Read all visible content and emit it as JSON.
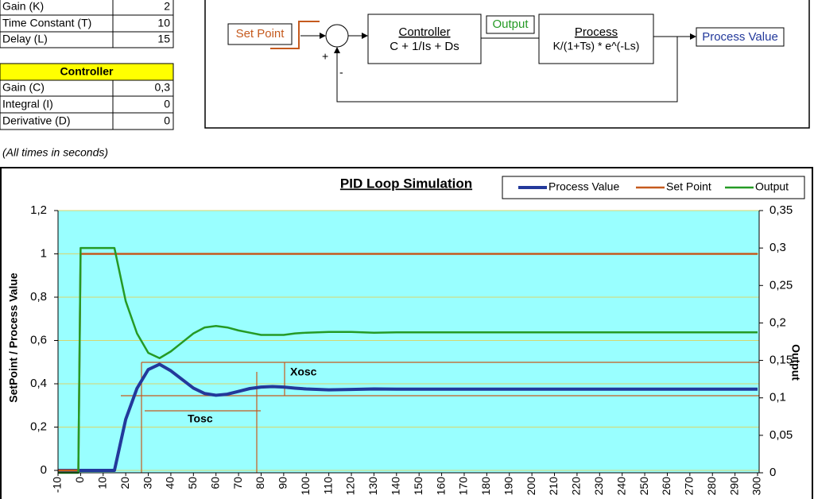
{
  "parameters_table": {
    "rows": [
      [
        "Gain (K)",
        "2"
      ],
      [
        "Time Constant (T)",
        "10"
      ],
      [
        "Delay (L)",
        "15"
      ]
    ]
  },
  "controller_table": {
    "title": "Controller",
    "rows": [
      [
        "Gain (C)",
        "0,3"
      ],
      [
        "Integral (I)",
        "0"
      ],
      [
        "Derivative (D)",
        "0"
      ]
    ]
  },
  "diagram": {
    "set_point": "Set Point",
    "controller_title": "Controller",
    "controller_formula": "C + 1/Is + Ds",
    "output": "Output",
    "process_title": "Process",
    "process_formula": "K/(1+Ts) * e^(-Ls)",
    "process_value": "Process Value",
    "plus": "+",
    "minus": "-"
  },
  "note": "(All times in seconds)",
  "chart_data": {
    "type": "line",
    "title": "PID Loop Simulation",
    "y_label": "SetPoint / Process Value",
    "y2_label": "Output",
    "annotations": [
      "Xosc",
      "Tosc"
    ],
    "x": [
      -10,
      -1,
      0,
      5,
      10,
      15,
      20,
      25,
      30,
      35,
      40,
      45,
      50,
      55,
      60,
      65,
      70,
      75,
      80,
      85,
      90,
      95,
      100,
      110,
      120,
      130,
      140,
      150,
      200,
      250,
      300
    ],
    "series": [
      {
        "name": "Process Value",
        "color": "#23399b",
        "axis": "y",
        "values": [
          0,
          0,
          0,
          0,
          0,
          0,
          0.236,
          0.379,
          0.466,
          0.49,
          0.46,
          0.42,
          0.38,
          0.355,
          0.347,
          0.352,
          0.365,
          0.378,
          0.385,
          0.387,
          0.385,
          0.38,
          0.376,
          0.372,
          0.374,
          0.376,
          0.375,
          0.375,
          0.375,
          0.375,
          0.375
        ]
      },
      {
        "name": "Set Point",
        "color": "#c55a1e",
        "axis": "y",
        "values": [
          0,
          0,
          1,
          1,
          1,
          1,
          1,
          1,
          1,
          1,
          1,
          1,
          1,
          1,
          1,
          1,
          1,
          1,
          1,
          1,
          1,
          1,
          1,
          1,
          1,
          1,
          1,
          1,
          1,
          1,
          1
        ]
      },
      {
        "name": "Output",
        "color": "#259a25",
        "axis": "y2",
        "values": [
          0,
          0,
          0.3,
          0.3,
          0.3,
          0.3,
          0.229,
          0.186,
          0.16,
          0.153,
          0.162,
          0.174,
          0.186,
          0.194,
          0.196,
          0.194,
          0.19,
          0.187,
          0.184,
          0.184,
          0.184,
          0.186,
          0.187,
          0.188,
          0.188,
          0.187,
          0.1875,
          0.1875,
          0.1875,
          0.1875,
          0.1875
        ]
      }
    ],
    "xlim": [
      -10,
      300
    ],
    "xticks": [
      -10,
      0,
      10,
      20,
      30,
      40,
      50,
      60,
      70,
      80,
      90,
      100,
      110,
      120,
      130,
      140,
      150,
      160,
      170,
      180,
      190,
      200,
      210,
      220,
      230,
      240,
      250,
      260,
      270,
      280,
      290,
      300
    ],
    "ylim": [
      0,
      1.2
    ],
    "yticks": [
      0,
      {
        "value": 0.2,
        "label": "0,2"
      },
      {
        "value": 0.4,
        "label": "0,4"
      },
      {
        "value": 0.6,
        "label": "0,6"
      },
      {
        "value": 0.8,
        "label": "0,8"
      },
      1,
      {
        "value": 1.2,
        "label": "1,2"
      }
    ],
    "y2lim": [
      0,
      0.35
    ],
    "y2ticks": [
      0,
      {
        "value": 0.05,
        "label": "0,05"
      },
      {
        "value": 0.1,
        "label": "0,1"
      },
      {
        "value": 0.15,
        "label": "0,15"
      },
      {
        "value": 0.2,
        "label": "0,2"
      },
      {
        "value": 0.25,
        "label": "0,25"
      },
      {
        "value": 0.3,
        "label": "0,3"
      },
      {
        "value": 0.35,
        "label": "0,35"
      }
    ],
    "grid": true,
    "legend": "top-right",
    "background": "#99ffff"
  }
}
